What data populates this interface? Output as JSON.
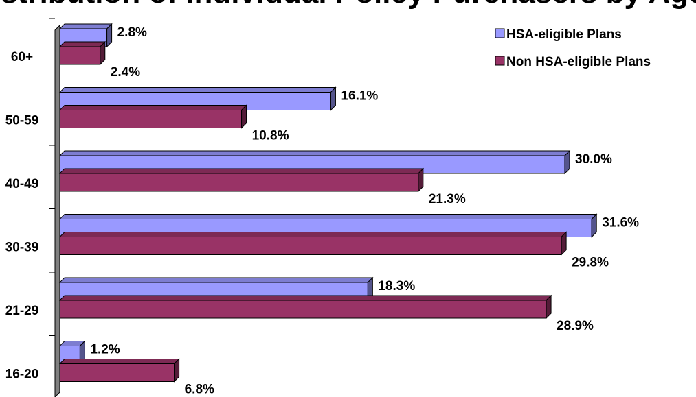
{
  "chart_data": {
    "type": "bar",
    "orientation": "horizontal",
    "title": "Distribution of Individual Policy Purchasers by Age",
    "categories": [
      "60+",
      "50-59",
      "40-49",
      "30-39",
      "21-29",
      "16-20"
    ],
    "series": [
      {
        "name": "HSA-eligible Plans",
        "values": [
          2.8,
          16.1,
          30.0,
          31.6,
          18.3,
          1.2
        ],
        "labels": [
          "2.8%",
          "16.1%",
          "30.0%",
          "31.6%",
          "18.3%",
          "1.2%"
        ],
        "color": "#9999ff"
      },
      {
        "name": "Non HSA-eligible Plans",
        "values": [
          2.4,
          10.8,
          21.3,
          29.8,
          28.9,
          6.8
        ],
        "labels": [
          "2.4%",
          "10.8%",
          "21.3%",
          "29.8%",
          "28.9%",
          "6.8%"
        ],
        "color": "#993366"
      }
    ],
    "value_unit": "%",
    "xlim": [
      0,
      35
    ],
    "grid": false,
    "legend_position": "top-right",
    "style": "3d"
  }
}
